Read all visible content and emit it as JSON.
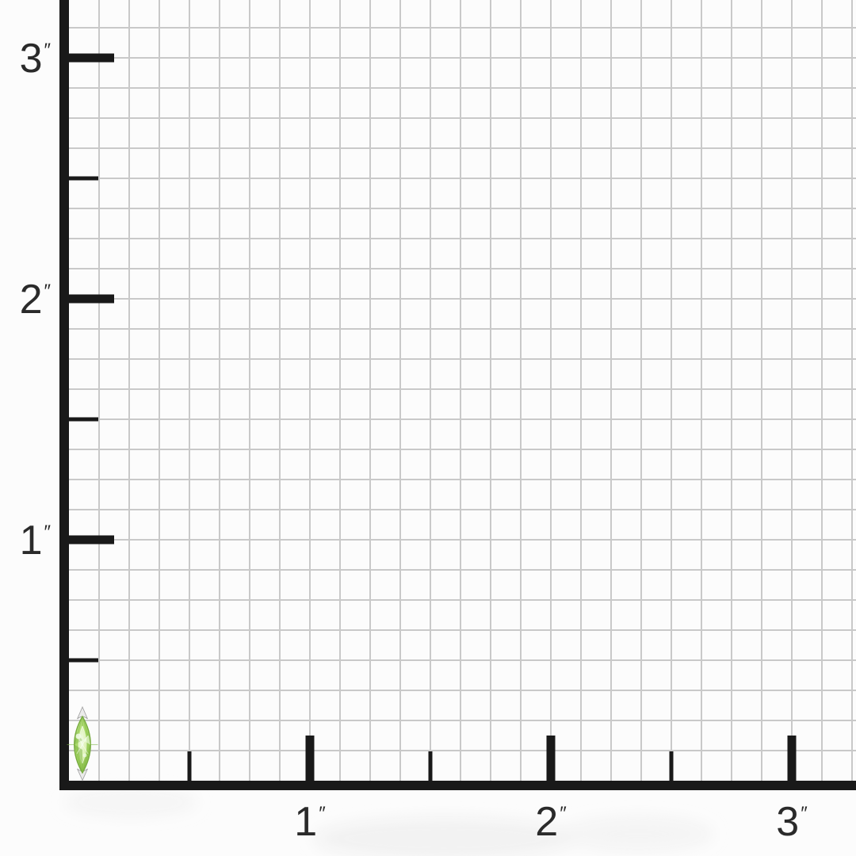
{
  "scene": {
    "background": "#fcfcfc",
    "grid_color": "#c9c9c9",
    "axis_color": "#191919",
    "label_color": "#2a2a2a",
    "shadow_color": "#e9e9e9"
  },
  "ruler": {
    "unit": "inch",
    "unit_symbol": "″",
    "cells_per_inch": 8,
    "x_axis": {
      "major_ticks": [
        {
          "inches": 1,
          "label": "1"
        },
        {
          "inches": 2,
          "label": "2"
        },
        {
          "inches": 3,
          "label": "3"
        }
      ],
      "medium_ticks_inches": [
        0.5,
        1.5,
        2.5
      ]
    },
    "y_axis": {
      "major_ticks": [
        {
          "inches": 1,
          "label": "1"
        },
        {
          "inches": 2,
          "label": "2"
        },
        {
          "inches": 3,
          "label": "3"
        }
      ],
      "medium_ticks_inches": [
        0.5,
        1.5,
        2.5
      ]
    }
  },
  "gem": {
    "type": "marquise-cut-green-gemstone",
    "colors": {
      "rim": "#8fc24f",
      "rim_edge": "#76aa3f",
      "body": "#a8d967",
      "body_light": "#c6e894",
      "table": "#dcf2b2",
      "shadow_facet": "#7cb244",
      "glint": "#f2fbe8",
      "prong": "#ebebeb",
      "prong_edge": "#a3a3a3"
    }
  }
}
